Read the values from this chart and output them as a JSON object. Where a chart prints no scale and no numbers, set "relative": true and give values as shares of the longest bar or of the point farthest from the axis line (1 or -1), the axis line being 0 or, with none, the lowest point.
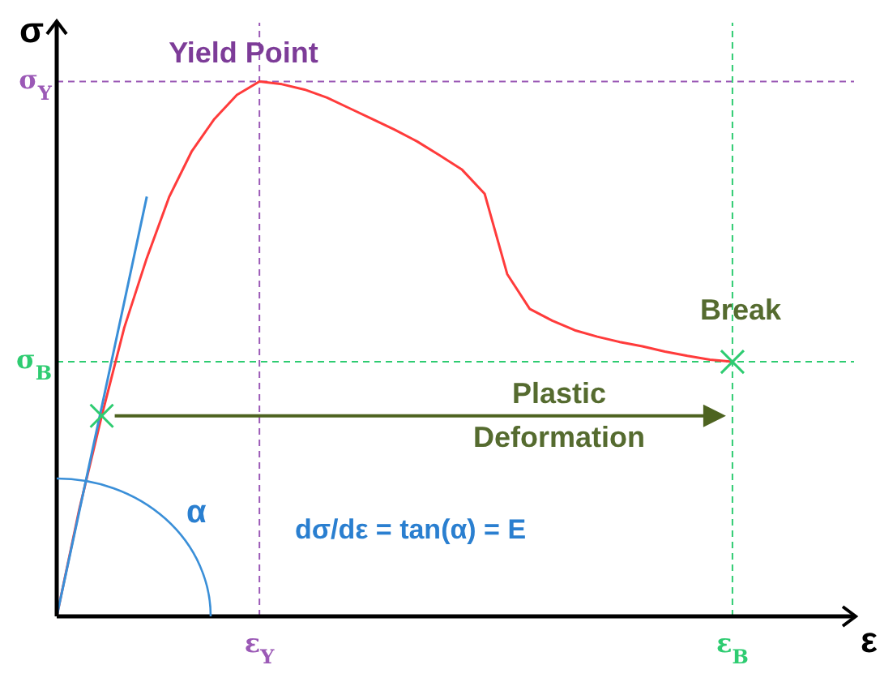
{
  "chart_data": {
    "type": "line",
    "relative": true,
    "xlabel": "ε",
    "ylabel": "σ",
    "categories": [
      null,
      null,
      null,
      null,
      null,
      null,
      null,
      null,
      null,
      "ε$_{Y}$",
      null,
      null,
      null,
      null,
      null,
      null,
      null,
      null,
      null,
      null,
      null,
      null,
      null,
      null,
      null,
      null,
      null,
      null,
      null,
      null,
      "ε$_{B}$"
    ],
    "series": [
      {
        "color": "#ff3b3b",
        "values": [
          0,
          0.2,
          0.375,
          0.54,
          0.67,
          0.785,
          0.87,
          0.93,
          0.975,
          1,
          0.995,
          0.985,
          0.97,
          0.95,
          0.93,
          0.91,
          0.888,
          0.862,
          0.835,
          0.79,
          0.64,
          0.575,
          0.553,
          0.535,
          0.523,
          0.513,
          0.505,
          0.495,
          0.487,
          0.48,
          0.476
        ]
      },
      {
        "color": "#3a8fd8",
        "values": [
          0,
          0.196,
          0.392,
          0.588,
          0.785,
          null,
          null,
          null,
          null,
          null,
          null,
          null,
          null,
          null,
          null,
          null,
          null,
          null,
          null,
          null,
          null,
          null,
          null,
          null,
          null,
          null,
          null,
          null,
          null,
          null,
          null
        ]
      },
      {
        "type": "scatter",
        "color": "#2ecc71",
        "marker": "cross",
        "values": [
          null,
          null,
          0.375,
          null,
          null,
          null,
          null,
          null,
          null,
          null,
          null,
          null,
          null,
          null,
          null,
          null,
          null,
          null,
          null,
          null,
          null,
          null,
          null,
          null,
          null,
          null,
          null,
          null,
          null,
          null,
          0.476
        ]
      }
    ],
    "ref_lines": [
      {
        "axis": "y",
        "value": 1,
        "label": "σ$_{Y}$",
        "color": "#9b59b6",
        "line_style": "dashed"
      },
      {
        "axis": "x",
        "value": "ε$_{Y}$",
        "color": "#9b59b6",
        "line_style": "dashed"
      },
      {
        "axis": "y",
        "value": 0.476,
        "label": "σ$_{B}$",
        "color": "#2ecc71",
        "line_style": "dashed"
      },
      {
        "axis": "x",
        "value": "ε$_{B}$",
        "color": "#2ecc71",
        "line_style": "dashed"
      }
    ],
    "annotations": [
      {
        "text": "Yield Point",
        "x": "ε$_{Y}$",
        "y": 1
      },
      {
        "text": "Break",
        "x": "ε$_{B}$",
        "y": 0.476
      },
      "Plastic Deformation",
      "α",
      "dσ/dε = tan(α) = E"
    ],
    "grid": false,
    "legend": false,
    "marker": "none",
    "line_style": "solid"
  }
}
